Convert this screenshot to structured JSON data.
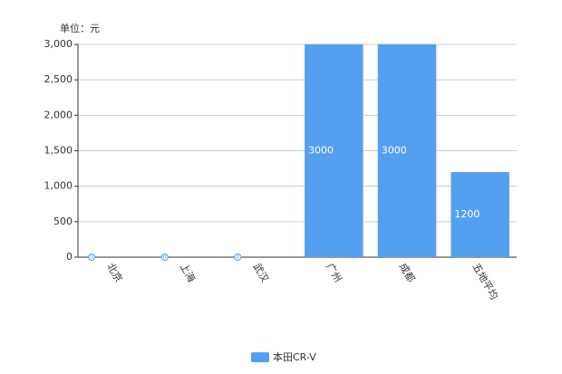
{
  "chart_data": {
    "type": "bar",
    "unit_label": "单位：元",
    "categories": [
      "北京",
      "上海",
      "武汉",
      "广州",
      "成都",
      "五地平均"
    ],
    "series": [
      {
        "name": "本田CR-V",
        "color": "#559ff0",
        "values": [
          0,
          0,
          0,
          3000,
          3000,
          1200
        ]
      }
    ],
    "ylim": [
      0,
      3000
    ],
    "yticks": [
      0,
      500,
      {
        "value": 1000,
        "label": "1,000"
      },
      {
        "value": 1500,
        "label": "1,500"
      },
      {
        "value": 2000,
        "label": "2,000"
      },
      {
        "value": 2500,
        "label": "2,500"
      },
      {
        "value": 3000,
        "label": "3,000"
      }
    ],
    "grid": true,
    "legend": "bottom"
  }
}
